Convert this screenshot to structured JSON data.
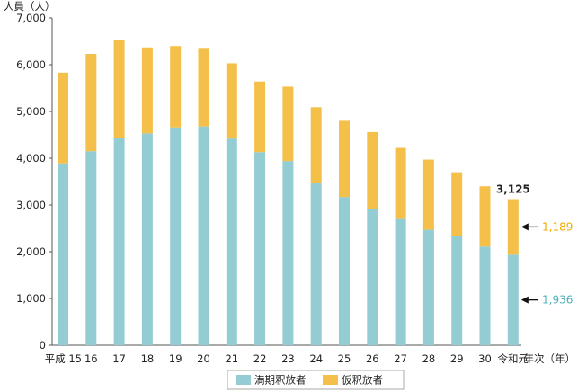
{
  "chart_data": {
    "type": "bar",
    "stacked": true,
    "ylabel": "人員（人）",
    "xlabel": "年次（年）",
    "ylim": [
      0,
      7000
    ],
    "yticks": [
      0,
      1000,
      2000,
      3000,
      4000,
      5000,
      6000,
      7000
    ],
    "ytick_labels": [
      "0",
      "1,000",
      "2,000",
      "3,000",
      "4,000",
      "5,000",
      "6,000",
      "7,000"
    ],
    "categories": [
      "平成 15",
      "16",
      "17",
      "18",
      "19",
      "20",
      "21",
      "22",
      "23",
      "24",
      "25",
      "26",
      "27",
      "28",
      "29",
      "30",
      "令和元"
    ],
    "series": [
      {
        "name": "満期釈放者",
        "color": "#93cdd3",
        "values": [
          3890,
          4150,
          4440,
          4530,
          4660,
          4680,
          4420,
          4130,
          3940,
          3480,
          3170,
          2920,
          2700,
          2470,
          2340,
          2110,
          1936
        ]
      },
      {
        "name": "仮釈放者",
        "color": "#f5c04a",
        "values": [
          1940,
          2080,
          2080,
          1840,
          1740,
          1680,
          1610,
          1510,
          1590,
          1610,
          1630,
          1640,
          1520,
          1500,
          1360,
          1290,
          1189
        ]
      }
    ],
    "annotations": {
      "total_label": "3,125",
      "callout_upper": "1,189",
      "callout_lower": "1,936",
      "callout_upper_color": "#f0a800",
      "callout_lower_color": "#4fb0ba"
    },
    "legend": {
      "placement": "bottom",
      "items": [
        "満期釈放者",
        "仮釈放者"
      ]
    },
    "grid": false,
    "axis_color": "#555555"
  }
}
